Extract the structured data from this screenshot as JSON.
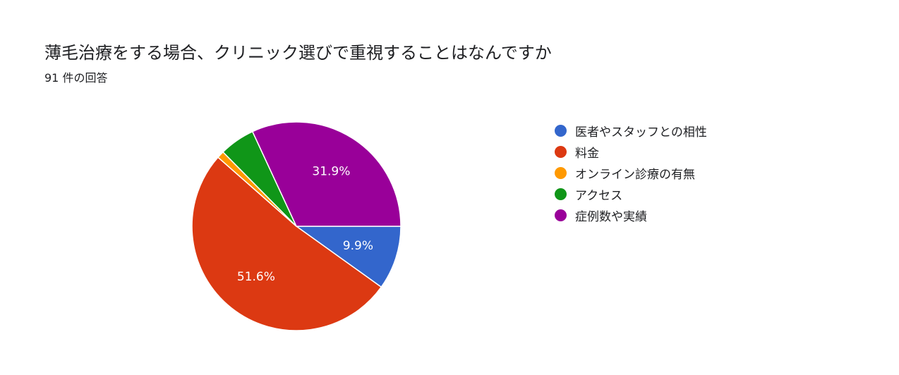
{
  "header": {
    "title": "薄毛治療をする場合、クリニック選びで重視することはなんですか",
    "response_count": "91 件の回答"
  },
  "chart_data": {
    "type": "pie",
    "title": "薄毛治療をする場合、クリニック選びで重視することはなんですか",
    "categories": [
      "医者やスタッフとの相性",
      "料金",
      "オンライン診療の有無",
      "アクセス",
      "症例数や実績"
    ],
    "values": [
      9.9,
      51.6,
      1.1,
      5.5,
      31.9
    ],
    "value_labels": [
      "9.9%",
      "51.6%",
      "",
      "",
      "31.9%"
    ],
    "colors": [
      "#3366cc",
      "#dc3912",
      "#ff9900",
      "#109618",
      "#990099"
    ],
    "start": "3 o'clock, clockwise",
    "legend": "right"
  }
}
